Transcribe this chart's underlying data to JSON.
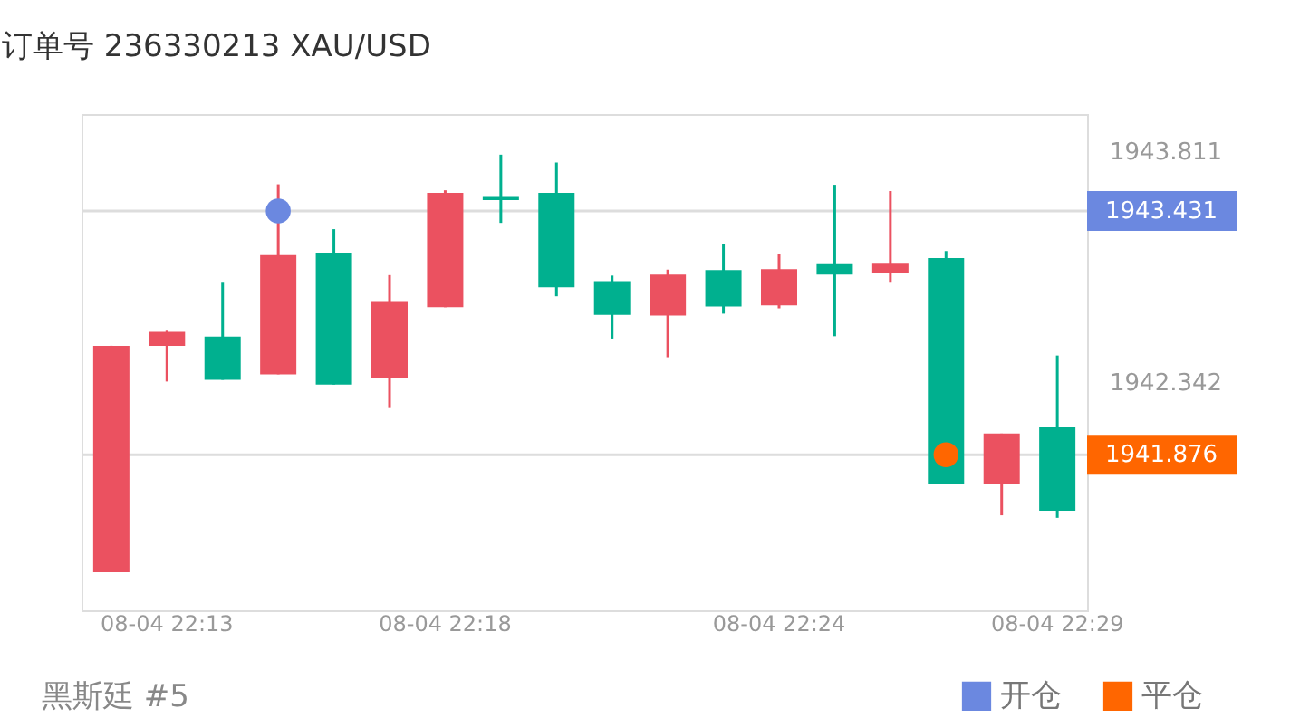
{
  "chart_data": {
    "type": "candlestick",
    "title": "订单号 236330213    XAU/USD",
    "categories": [
      null,
      "08-04 22:13",
      null,
      null,
      null,
      null,
      "08-04 22:18",
      null,
      null,
      null,
      null,
      null,
      "08-04 22:24",
      null,
      null,
      null,
      null,
      "08-04 22:29"
    ],
    "ohlc": [
      [
        1941.127,
        1942.571,
        1941.127,
        1942.571
      ],
      [
        1942.571,
        1942.667,
        1942.343,
        1942.66
      ],
      [
        1942.629,
        1942.979,
        1942.354,
        1942.354
      ],
      [
        1942.389,
        1943.601,
        1942.389,
        1943.15
      ],
      [
        1943.165,
        1943.315,
        1942.324,
        1942.324
      ],
      [
        1942.366,
        1943.022,
        1942.174,
        1942.857
      ],
      [
        1942.817,
        1943.563,
        1942.817,
        1943.547
      ],
      [
        1943.52,
        1943.79,
        1943.355,
        1943.5
      ],
      [
        1943.547,
        1943.74,
        1942.887,
        1942.945
      ],
      [
        1942.984,
        1943.019,
        1942.617,
        1942.768
      ],
      [
        1942.764,
        1943.057,
        1942.498,
        1943.026
      ],
      [
        1943.054,
        1943.223,
        1942.776,
        1942.822
      ],
      [
        1942.829,
        1943.158,
        1942.81,
        1943.06
      ],
      [
        1943.092,
        1943.598,
        1942.632,
        1943.026
      ],
      [
        1943.037,
        1943.558,
        1942.979,
        1943.095
      ],
      [
        1943.13,
        1943.176,
        1941.687,
        1941.687
      ],
      [
        1941.687,
        1942.011,
        1941.49,
        1942.011
      ],
      [
        1942.05,
        1942.509,
        1941.474,
        1941.52
      ]
    ],
    "colors": [
      "#eb5160",
      "#eb5160",
      "#00b08f",
      "#eb5160",
      "#00b08f",
      "#eb5160",
      "#eb5160",
      "#00b08f",
      "#00b08f",
      "#00b08f",
      "#eb5160",
      "#00b08f",
      "#eb5160",
      "#00b08f",
      "#eb5160",
      "#00b08f",
      "#eb5160",
      "#00b08f"
    ],
    "series": [
      {
        "name": "开仓",
        "type": "scatter",
        "color": "#6b88e0",
        "values": [
          null,
          null,
          null,
          1943.431,
          null,
          null,
          null,
          null,
          null,
          null,
          null,
          null,
          null,
          null,
          null,
          null,
          null,
          null
        ]
      },
      {
        "name": "平仓",
        "type": "scatter",
        "color": "#ff6600",
        "values": [
          null,
          null,
          null,
          null,
          null,
          null,
          null,
          null,
          null,
          null,
          null,
          null,
          null,
          null,
          null,
          1941.876,
          null,
          null
        ]
      }
    ],
    "marker": "circle",
    "ylim": [
      1940.884,
      1944.049
    ],
    "yticks": [
      1943.811,
      1942.342
    ],
    "ref_lines": [
      {
        "axis": "y",
        "value": 1943.431,
        "label": "1943.431"
      },
      {
        "axis": "y",
        "value": 1941.876,
        "label": "1941.876"
      }
    ],
    "legend": "bottom right",
    "annotations": [
      "黑斯廷 #5"
    ]
  }
}
